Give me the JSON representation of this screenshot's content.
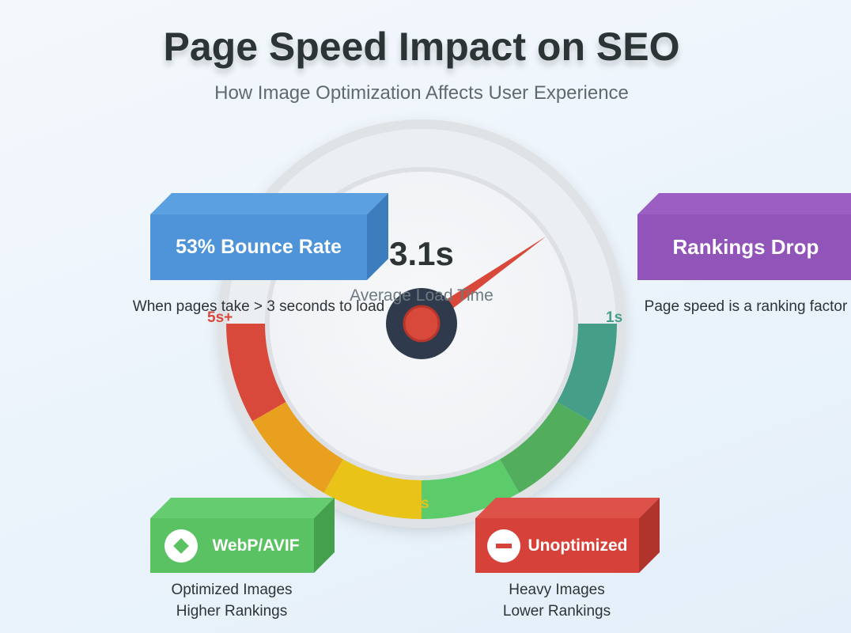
{
  "header": {
    "title": "Page Speed Impact on SEO",
    "subtitle": "How Image Optimization Affects User Experience"
  },
  "gauge": {
    "value": "3.1s",
    "value_label": "Average Load Time",
    "tick_slow": "5s+",
    "tick_fast": "1s",
    "tick_mid": "s",
    "needle_value_seconds": 3.1,
    "segment_colors": [
      "#d9493b",
      "#e8a01e",
      "#e9c318",
      "#5ccc6b",
      "#52ae5c",
      "#459e88"
    ],
    "needle_color": "#d9493b",
    "hub_color": "#2f3b4c"
  },
  "cards": {
    "bounce": {
      "label": "53% Bounce Rate",
      "caption": "When pages take > 3 seconds to load",
      "color": "#4f94d8"
    },
    "rankings": {
      "label": "Rankings Drop",
      "caption": "Page speed is a ranking factor",
      "color": "#9154b9"
    },
    "webp": {
      "label": "WebP/AVIF",
      "caption_line1": "Optimized Images",
      "caption_line2": "Higher Rankings",
      "icon": "diamond-check-icon",
      "color": "#5ac262"
    },
    "unoptimized": {
      "label": "Unoptimized",
      "caption_line1": "Heavy Images",
      "caption_line2": "Lower Rankings",
      "icon": "no-entry-icon",
      "color": "#d6423a"
    }
  }
}
